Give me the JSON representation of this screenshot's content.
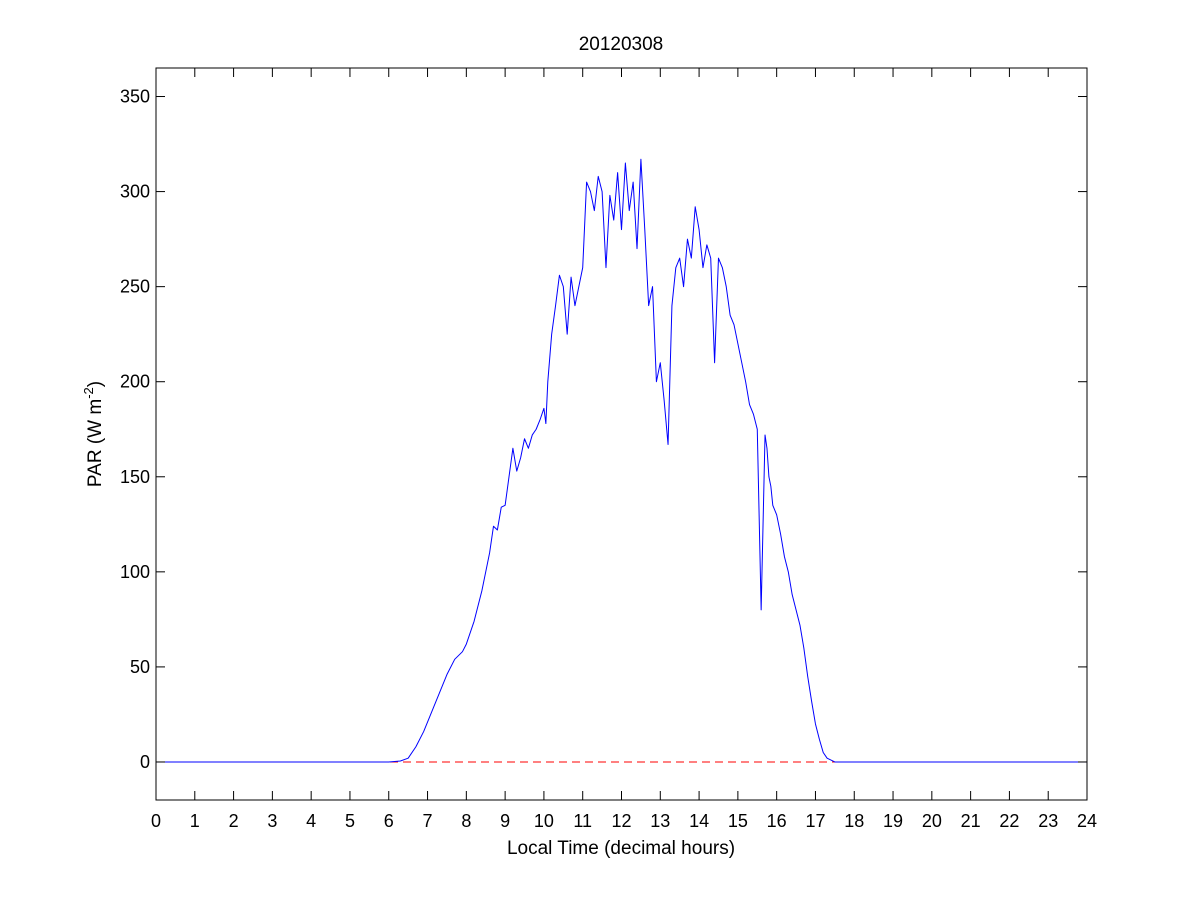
{
  "chart_data": {
    "type": "line",
    "title": "20120308",
    "xlabel": "Local Time (decimal hours)",
    "ylabel": "PAR (W m",
    "ylabel_sup": "-2",
    "ylabel_suffix": ")",
    "xlim": [
      0,
      24
    ],
    "ylim": [
      -20,
      365
    ],
    "xticks": [
      "0",
      "1",
      "2",
      "3",
      "4",
      "5",
      "6",
      "7",
      "8",
      "9",
      "10",
      "11",
      "12",
      "13",
      "14",
      "15",
      "16",
      "17",
      "18",
      "19",
      "20",
      "21",
      "22",
      "23",
      "24"
    ],
    "yticks": [
      "0",
      "50",
      "100",
      "150",
      "200",
      "250",
      "300",
      "350"
    ],
    "grid": false,
    "line_color": "#0000ff",
    "baseline": {
      "y": 0,
      "color": "#ff0000",
      "style": "dashed"
    },
    "series": [
      {
        "x": [
          0,
          6.0,
          6.3,
          6.5,
          6.7,
          6.9,
          7.1,
          7.3,
          7.5,
          7.7,
          7.9,
          8.0,
          8.2,
          8.4,
          8.6,
          8.7,
          8.8,
          8.9,
          9.0,
          9.1,
          9.2,
          9.3,
          9.4,
          9.5,
          9.6,
          9.7,
          9.8,
          9.9,
          10.0,
          10.05,
          10.1,
          10.2,
          10.3,
          10.4,
          10.5,
          10.6,
          10.7,
          10.8,
          10.9,
          11.0,
          11.1,
          11.2,
          11.3,
          11.4,
          11.5,
          11.6,
          11.7,
          11.8,
          11.9,
          12.0,
          12.1,
          12.2,
          12.3,
          12.4,
          12.5,
          12.6,
          12.7,
          12.8,
          12.9,
          13.0,
          13.1,
          13.2,
          13.3,
          13.4,
          13.5,
          13.6,
          13.7,
          13.8,
          13.9,
          14.0,
          14.1,
          14.2,
          14.3,
          14.4,
          14.5,
          14.6,
          14.7,
          14.8,
          14.9,
          15.0,
          15.1,
          15.2,
          15.3,
          15.4,
          15.5,
          15.6,
          15.7,
          15.75,
          15.8,
          15.85,
          15.9,
          16.0,
          16.1,
          16.2,
          16.3,
          16.4,
          16.5,
          16.6,
          16.7,
          16.8,
          16.9,
          17.0,
          17.1,
          17.2,
          17.3,
          17.4,
          17.5,
          17.6,
          17.7,
          17.8,
          17.9,
          18.0,
          18.1,
          18.3,
          18.5,
          18.8,
          24
        ],
        "y": [
          0,
          0,
          0.5,
          2,
          8,
          16,
          26,
          36,
          46,
          54,
          58,
          62,
          74,
          90,
          110,
          124,
          122,
          134,
          135,
          150,
          165,
          153,
          160,
          170,
          165,
          172,
          175,
          180,
          186,
          178,
          200,
          225,
          240,
          256,
          250,
          225,
          255,
          240,
          250,
          260,
          305,
          300,
          290,
          308,
          300,
          260,
          298,
          285,
          310,
          280,
          315,
          290,
          305,
          270,
          317,
          280,
          240,
          250,
          200,
          210,
          190,
          167,
          240,
          260,
          265,
          250,
          275,
          265,
          292,
          280,
          260,
          272,
          265,
          210,
          265,
          260,
          250,
          235,
          230,
          220,
          210,
          200,
          188,
          183,
          175,
          80,
          172,
          165,
          150,
          145,
          135,
          130,
          120,
          108,
          100,
          88,
          80,
          72,
          60,
          45,
          32,
          20,
          12,
          5,
          2,
          1,
          0,
          0,
          0,
          0,
          0,
          0,
          0,
          0,
          0,
          0,
          0
        ]
      }
    ]
  }
}
